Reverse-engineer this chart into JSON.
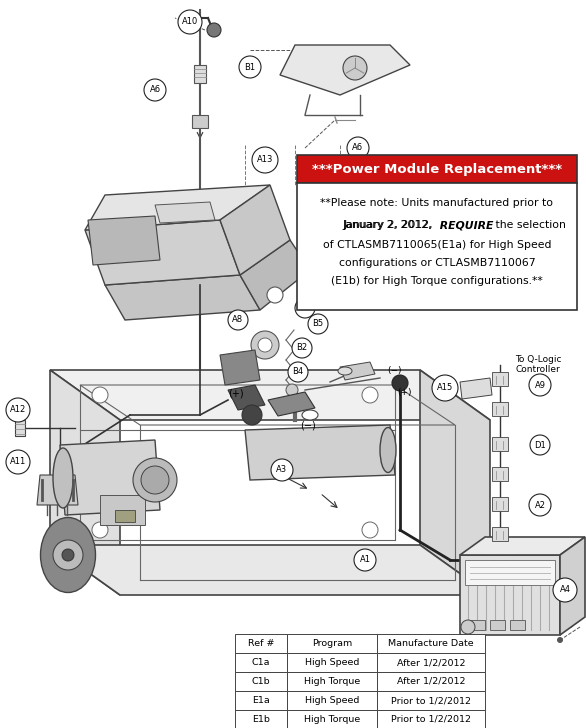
{
  "title": "***Power Module Replacement***",
  "title_color": "#ffffff",
  "title_bg_color": "#cc1111",
  "box_border_color": "#333333",
  "note_lines": [
    {
      "text": "**Please note: Units manufactured prior to",
      "bold": false
    },
    {
      "text": "January 2, 2012, ",
      "bold": false,
      "continues": true
    },
    {
      "text": "REQUIRE",
      "bold": true,
      "continues": true
    },
    {
      "text": " the selection",
      "bold": false,
      "ends": true
    },
    {
      "text": "of CTLASMB7110065(E1a) for High Speed",
      "bold": false
    },
    {
      "text": "configurations or CTLASMB7110067",
      "bold": false
    },
    {
      "text": "(E1b) for High Torque configurations.**",
      "bold": false
    }
  ],
  "table_headers": [
    "Ref #",
    "Program",
    "Manufacture Date"
  ],
  "table_rows": [
    [
      "C1a",
      "High Speed",
      "After 1/2/2012"
    ],
    [
      "C1b",
      "High Torque",
      "After 1/2/2012"
    ],
    [
      "E1a",
      "High Speed",
      "Prior to 1/2/2012"
    ],
    [
      "E1b",
      "High Torque",
      "Prior to 1/2/2012"
    ]
  ],
  "background_color": "#ffffff",
  "fig_width": 5.86,
  "fig_height": 7.28,
  "dpi": 100
}
